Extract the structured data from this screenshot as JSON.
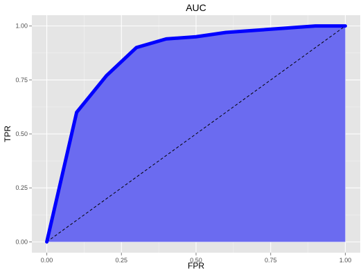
{
  "chart_data": {
    "type": "area",
    "title": "AUC",
    "xlabel": "FPR",
    "ylabel": "TPR",
    "xlim": [
      -0.05,
      1.05
    ],
    "ylim": [
      -0.05,
      1.05
    ],
    "x_ticks": [
      0.0,
      0.25,
      0.5,
      0.75,
      1.0
    ],
    "x_tick_labels": [
      "0.00",
      "0.25",
      "0.50",
      "0.75",
      "1.00"
    ],
    "y_ticks": [
      0.0,
      0.25,
      0.5,
      0.75,
      1.0
    ],
    "y_tick_labels": [
      "0.00",
      "0.25",
      "0.50",
      "0.75",
      "1.00"
    ],
    "grid": true,
    "series": [
      {
        "x": [
          0.0,
          0.1,
          0.2,
          0.3,
          0.4,
          0.5,
          0.6,
          0.7,
          0.8,
          0.9,
          1.0
        ],
        "y": [
          0.0,
          0.6,
          0.77,
          0.9,
          0.94,
          0.95,
          0.97,
          0.98,
          0.99,
          1.0,
          1.0
        ]
      }
    ],
    "reference_line": {
      "x": [
        0.0,
        1.0
      ],
      "y": [
        0.0,
        1.0
      ],
      "style": "dashed"
    },
    "colors": {
      "line": "#0000ff",
      "fill": "#6b6bf0",
      "panel": "#e5e5e5",
      "grid_major": "#ffffff",
      "grid_minor": "#f2f2f2",
      "reference": "#000000",
      "text": "#000000",
      "tick_text": "#4d4d4d",
      "tick_mark": "#7f7f7f"
    }
  }
}
